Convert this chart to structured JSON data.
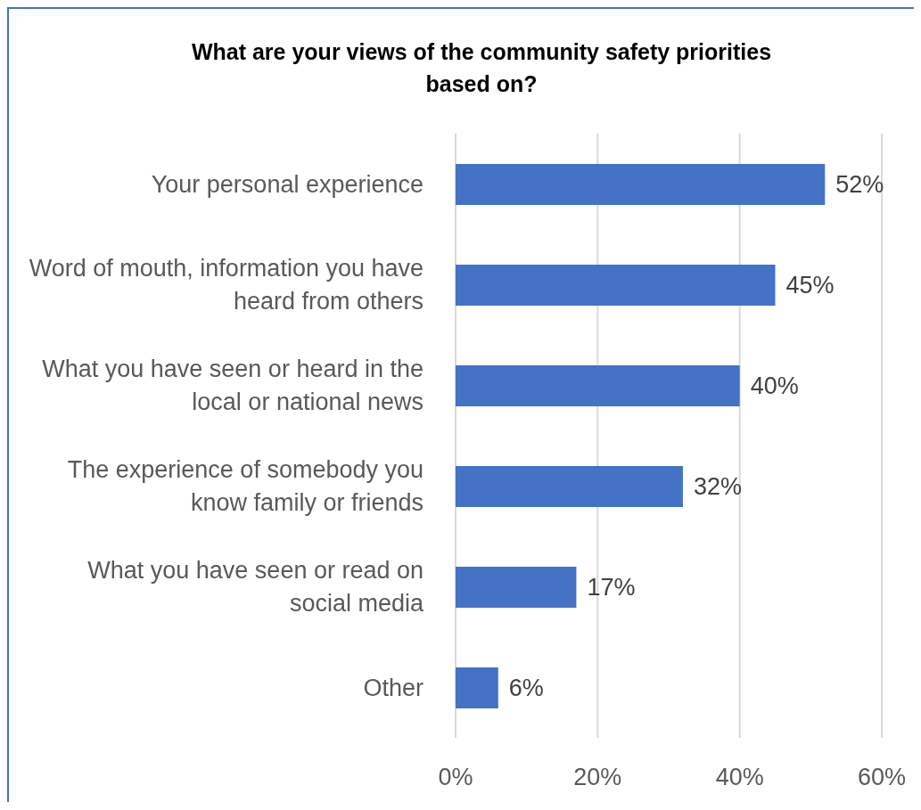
{
  "chart_data": {
    "type": "bar",
    "orientation": "horizontal",
    "title": "What are your views of the community safety priorities based on?",
    "categories": [
      "Your personal experience",
      "Word of mouth, information you have heard from others",
      "What you have seen or heard in the local or national news",
      "The experience of somebody you know family or friends",
      "What you have seen or read on social media",
      "Other"
    ],
    "values": [
      52,
      45,
      40,
      32,
      17,
      6
    ],
    "value_labels": [
      "52%",
      "45%",
      "40%",
      "32%",
      "17%",
      "6%"
    ],
    "color": "#4472c4",
    "xlim": [
      0,
      60
    ],
    "xticks": [
      {
        "value": 0,
        "label": "0%"
      },
      {
        "value": 20,
        "label": "20%"
      },
      {
        "value": 40,
        "label": "40%"
      },
      {
        "value": 60,
        "label": "60%"
      }
    ],
    "grid": "x",
    "legend": false
  }
}
